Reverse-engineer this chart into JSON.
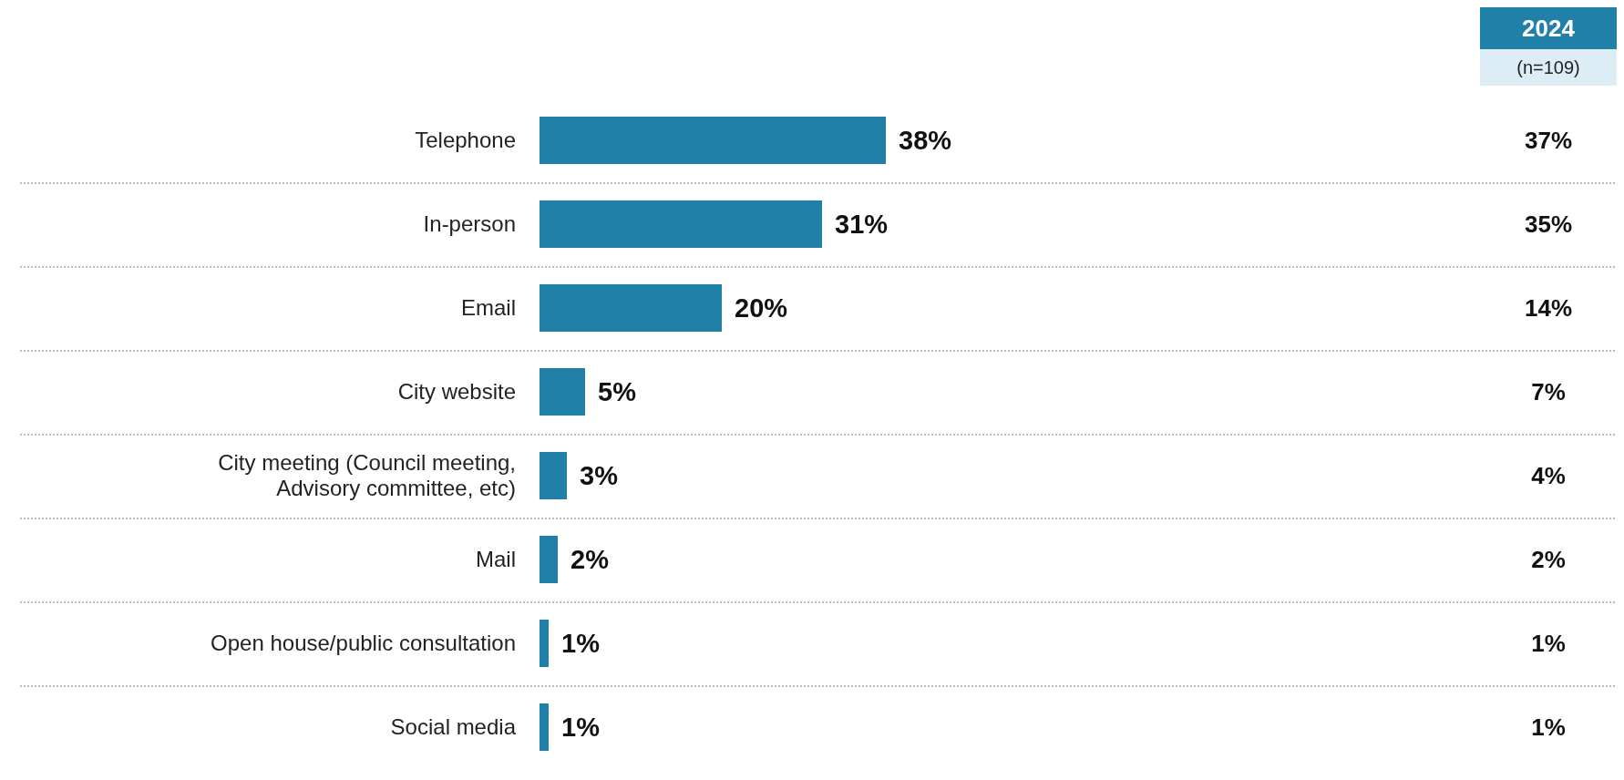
{
  "chart_data": {
    "type": "bar",
    "orientation": "horizontal",
    "categories": [
      "Telephone",
      "In-person",
      "Email",
      "City website",
      "City meeting (Council meeting, Advisory committee, etc)",
      "Mail",
      "Open house/public consultation",
      "Social media"
    ],
    "series": [
      {
        "color": "#2180a8",
        "values": [
          38,
          31,
          20,
          5,
          3,
          2,
          1,
          1
        ],
        "value_labels": [
          "38%",
          "31%",
          "20%",
          "5%",
          "3%",
          "2%",
          "1%",
          "1%"
        ]
      }
    ],
    "annotations": [
      "2024",
      "(n=109)",
      "37%",
      "35%",
      "14%",
      "7%",
      "4%",
      "2%",
      "1%",
      "1%"
    ]
  }
}
